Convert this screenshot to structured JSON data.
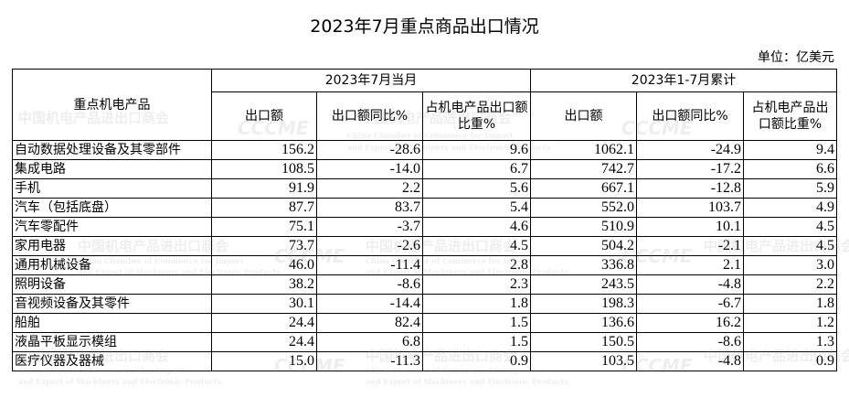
{
  "title": "2023年7月重点商品出口情况",
  "unit": "单位：亿美元",
  "table": {
    "corner_header": "重点机电产品",
    "group_headers": [
      "2023年7月当月",
      "2023年1-7月累计"
    ],
    "sub_headers": [
      "出口额",
      "出口额同比%",
      "占机电产品出口额比重%",
      "出口额",
      "出口额同比%",
      "占机电产品出口额比重%"
    ],
    "rows": [
      {
        "name": "自动数据处理设备及其零部件",
        "v": [
          "156.2",
          "-28.6",
          "9.6",
          "1062.1",
          "-24.9",
          "9.4"
        ]
      },
      {
        "name": "集成电路",
        "v": [
          "108.5",
          "-14.0",
          "6.7",
          "742.7",
          "-17.2",
          "6.6"
        ]
      },
      {
        "name": "手机",
        "v": [
          "91.9",
          "2.2",
          "5.6",
          "667.1",
          "-12.8",
          "5.9"
        ]
      },
      {
        "name": "汽车（包括底盘）",
        "v": [
          "87.7",
          "83.7",
          "5.4",
          "552.0",
          "103.7",
          "4.9"
        ]
      },
      {
        "name": "汽车零配件",
        "v": [
          "75.1",
          "-3.7",
          "4.6",
          "510.9",
          "10.1",
          "4.5"
        ]
      },
      {
        "name": "家用电器",
        "v": [
          "73.7",
          "-2.6",
          "4.5",
          "504.2",
          "-2.1",
          "4.5"
        ]
      },
      {
        "name": "通用机械设备",
        "v": [
          "46.0",
          "-11.4",
          "2.8",
          "336.8",
          "2.1",
          "3.0"
        ]
      },
      {
        "name": "照明设备",
        "v": [
          "38.2",
          "-8.6",
          "2.3",
          "243.5",
          "-4.8",
          "2.2"
        ]
      },
      {
        "name": "音视频设备及其零件",
        "v": [
          "30.1",
          "-14.4",
          "1.8",
          "198.3",
          "-6.7",
          "1.8"
        ]
      },
      {
        "name": "船舶",
        "v": [
          "24.4",
          "82.4",
          "1.5",
          "136.6",
          "16.2",
          "1.2"
        ]
      },
      {
        "name": "液晶平板显示模组",
        "v": [
          "24.4",
          "6.8",
          "1.5",
          "150.5",
          "-8.6",
          "1.3"
        ]
      },
      {
        "name": "医疗仪器及器械",
        "v": [
          "15.0",
          "-11.3",
          "0.9",
          "103.5",
          "-4.8",
          "0.9"
        ]
      }
    ]
  },
  "watermark": {
    "cn": "中国机电产品进出口商会",
    "en1": "China Chamber of Commerce for Import",
    "en2": "and Export of Machinery and Electronic Products",
    "logo": "CCCME"
  }
}
